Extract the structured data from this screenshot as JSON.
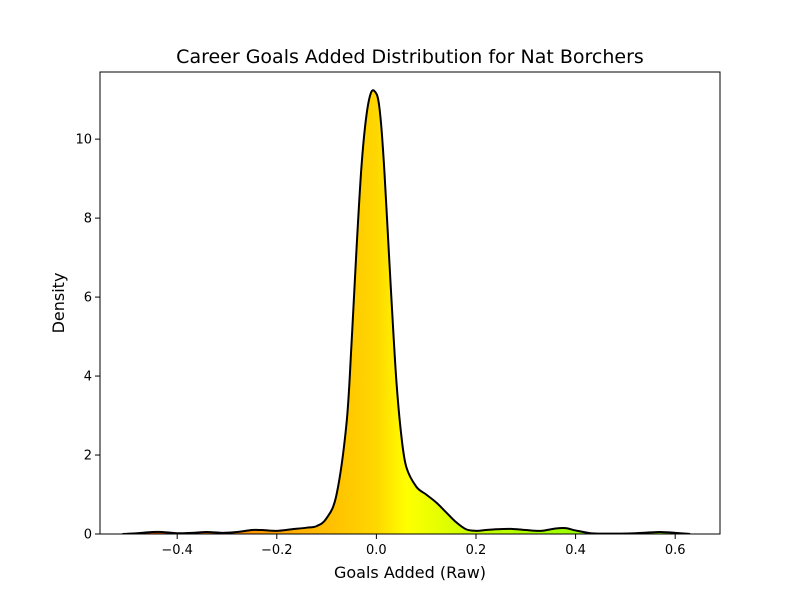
{
  "chart_data": {
    "type": "area",
    "title": "Career Goals Added Distribution for Nat Borchers",
    "xlabel": "Goals Added (Raw)",
    "ylabel": "Density",
    "xlim": [
      -0.555,
      0.69
    ],
    "ylim": [
      0,
      11.7
    ],
    "x_ticks": [
      -0.4,
      -0.2,
      0.0,
      0.2,
      0.4,
      0.6
    ],
    "x_tick_labels": [
      "−0.4",
      "−0.2",
      "0.0",
      "0.2",
      "0.4",
      "0.6"
    ],
    "y_ticks": [
      0,
      2,
      4,
      6,
      8,
      10
    ],
    "y_tick_labels": [
      "0",
      "2",
      "4",
      "6",
      "8",
      "10"
    ],
    "gradient_stops": [
      {
        "x": -0.51,
        "color": "#ff4500"
      },
      {
        "x": -0.2,
        "color": "#ffa500"
      },
      {
        "x": 0.0,
        "color": "#ffd700"
      },
      {
        "x": 0.06,
        "color": "#ffff00"
      },
      {
        "x": 0.2,
        "color": "#c8ff00"
      },
      {
        "x": 0.4,
        "color": "#9aff00"
      },
      {
        "x": 0.63,
        "color": "#7cfc00"
      }
    ],
    "line_color": "#000000",
    "series": [
      {
        "name": "Density",
        "x": [
          -0.51,
          -0.48,
          -0.45,
          -0.43,
          -0.4,
          -0.37,
          -0.34,
          -0.31,
          -0.28,
          -0.25,
          -0.23,
          -0.2,
          -0.17,
          -0.14,
          -0.12,
          -0.1,
          -0.08,
          -0.06,
          -0.05,
          -0.04,
          -0.03,
          -0.02,
          -0.01,
          0.0,
          0.005,
          0.01,
          0.015,
          0.02,
          0.03,
          0.04,
          0.05,
          0.06,
          0.08,
          0.1,
          0.12,
          0.14,
          0.16,
          0.18,
          0.2,
          0.22,
          0.24,
          0.27,
          0.3,
          0.33,
          0.36,
          0.38,
          0.4,
          0.43,
          0.46,
          0.49,
          0.52,
          0.55,
          0.57,
          0.6,
          0.63
        ],
        "y": [
          0.0,
          0.02,
          0.05,
          0.05,
          0.02,
          0.03,
          0.05,
          0.03,
          0.05,
          0.1,
          0.1,
          0.08,
          0.12,
          0.16,
          0.2,
          0.4,
          1.0,
          2.8,
          4.8,
          7.2,
          9.3,
          10.6,
          11.2,
          11.15,
          10.9,
          10.3,
          9.4,
          8.3,
          6.0,
          3.9,
          2.5,
          1.7,
          1.2,
          1.0,
          0.8,
          0.55,
          0.3,
          0.12,
          0.08,
          0.1,
          0.12,
          0.13,
          0.1,
          0.08,
          0.14,
          0.15,
          0.09,
          0.02,
          0.01,
          0.01,
          0.02,
          0.04,
          0.05,
          0.03,
          0.0
        ]
      }
    ]
  }
}
